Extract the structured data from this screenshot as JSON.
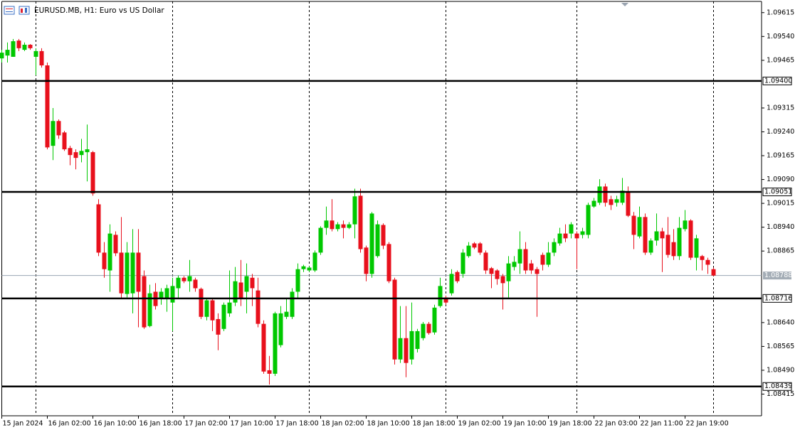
{
  "chart_data": {
    "type": "candlestick",
    "title": "EURUSD.MB, H1:  Euro vs US Dollar",
    "categories": [
      "15 Jan 2024",
      null,
      null,
      null,
      null,
      null,
      null,
      null,
      "16 Jan 02:00",
      null,
      null,
      null,
      null,
      null,
      null,
      null,
      "16 Jan 10:00",
      null,
      null,
      null,
      null,
      null,
      null,
      null,
      "16 Jan 18:00",
      null,
      null,
      null,
      null,
      null,
      null,
      null,
      "17 Jan 02:00",
      null,
      null,
      null,
      null,
      null,
      null,
      null,
      "17 Jan 10:00",
      null,
      null,
      null,
      null,
      null,
      null,
      null,
      "17 Jan 18:00",
      null,
      null,
      null,
      null,
      null,
      null,
      null,
      "18 Jan 02:00",
      null,
      null,
      null,
      null,
      null,
      null,
      null,
      "18 Jan 10:00",
      null,
      null,
      null,
      null,
      null,
      null,
      null,
      "18 Jan 18:00",
      null,
      null,
      null,
      null,
      null,
      null,
      null,
      "19 Jan 02:00",
      null,
      null,
      null,
      null,
      null,
      null,
      null,
      "19 Jan 10:00",
      null,
      null,
      null,
      null,
      null,
      null,
      null,
      "19 Jan 18:00",
      null,
      null,
      null,
      null,
      null,
      null,
      null,
      "22 Jan 03:00",
      null,
      null,
      null,
      null,
      null,
      null,
      null,
      "22 Jan 11:00",
      null,
      null,
      null,
      null,
      null,
      null,
      null,
      "22 Jan 19:00",
      null,
      null,
      null,
      null,
      null
    ],
    "open": [
      1.09471,
      1.0948,
      1.09476,
      1.09527,
      1.09498,
      1.09514,
      1.09476,
      1.09494,
      1.09449,
      1.09196,
      1.09274,
      1.09238,
      1.09189,
      1.09176,
      1.09167,
      1.09176,
      1.09176,
      1.09012,
      1.0886,
      1.08804,
      1.08916,
      1.0886,
      1.0873,
      1.08732,
      1.0886,
      1.08786,
      1.08629,
      1.08737,
      1.08714,
      1.08714,
      1.08703,
      1.08748,
      1.08781,
      1.0877,
      1.08775,
      1.08746,
      1.08658,
      1.0871,
      1.08651,
      1.0862,
      1.08669,
      1.08703,
      1.08766,
      1.08737,
      1.08781,
      1.08741,
      1.08636,
      1.0849,
      1.08479,
      1.08569,
      1.08658,
      1.08658,
      1.08737,
      1.08808,
      1.08804,
      1.08804,
      1.0886,
      1.08938,
      1.08961,
      1.08934,
      1.08949,
      1.08938,
      1.08949,
      1.09039,
      1.08876,
      1.08793,
      1.08849,
      1.08947,
      1.08887,
      1.08775,
      1.08524,
      1.08591,
      1.08524,
      1.08557,
      1.08591,
      1.08636,
      1.08609,
      1.08692,
      1.08719,
      1.08732,
      1.08799,
      1.08793,
      1.08849,
      1.08889,
      1.08889,
      1.0886,
      1.08811,
      1.08804,
      1.08786,
      1.0877,
      1.08815,
      1.08826,
      1.08871,
      1.08826,
      1.08808,
      1.08853,
      1.08822,
      1.0886,
      1.08889,
      1.0892,
      1.0892,
      1.0892,
      1.08916,
      1.08916,
      1.09005,
      1.09017,
      1.09068,
      1.09028,
      1.09017,
      1.09017,
      1.0905,
      1.08976,
      1.08911,
      1.08972,
      1.0886,
      1.08898,
      1.08927,
      1.08916,
      1.08893,
      1.08849,
      1.08934,
      1.08961,
      1.08844,
      1.08849,
      1.08837,
      1.08808
    ],
    "high": [
      1.09498,
      1.09521,
      1.09532,
      1.09532,
      1.09521,
      1.09516,
      1.09503,
      1.09503,
      1.09458,
      1.09315,
      1.09279,
      1.09243,
      1.09196,
      1.09185,
      1.09218,
      1.09263,
      1.0918,
      1.09028,
      1.08893,
      1.08949,
      1.08927,
      1.08972,
      1.08893,
      1.08934,
      1.08934,
      1.08804,
      1.08759,
      1.08764,
      1.08748,
      1.08759,
      1.08781,
      1.08788,
      1.08786,
      1.08837,
      1.08781,
      1.0875,
      1.08714,
      1.08714,
      1.08669,
      1.08703,
      1.08804,
      1.08815,
      1.08837,
      1.08826,
      1.08793,
      1.08781,
      1.08647,
      1.08535,
      1.08674,
      1.08692,
      1.08714,
      1.08748,
      1.08826,
      1.08822,
      1.08817,
      1.08867,
      1.08943,
      1.09005,
      1.09028,
      1.08956,
      1.08961,
      1.08956,
      1.09061,
      1.09061,
      1.08882,
      1.08988,
      1.08961,
      1.08952,
      1.08893,
      1.08781,
      1.08692,
      1.08692,
      1.08703,
      1.0862,
      1.08642,
      1.08642,
      1.08696,
      1.08781,
      1.08725,
      1.08808,
      1.08804,
      1.08871,
      1.08893,
      1.08893,
      1.08893,
      1.08867,
      1.08815,
      1.08808,
      1.08793,
      1.08849,
      1.08849,
      1.08927,
      1.08893,
      1.08837,
      1.08815,
      1.0886,
      1.08893,
      1.08905,
      1.08938,
      1.08949,
      1.08956,
      1.08927,
      1.08938,
      1.09017,
      1.09032,
      1.09091,
      1.09077,
      1.09039,
      1.09039,
      1.09095,
      1.09068,
      1.08988,
      1.09005,
      1.08983,
      1.08905,
      1.08983,
      1.08938,
      1.08972,
      1.08934,
      1.08972,
      1.08994,
      1.08965,
      1.08916,
      1.08853,
      1.08844,
      1.08813
    ],
    "low": [
      1.09458,
      1.09458,
      1.09476,
      1.09494,
      1.09494,
      1.09498,
      1.09418,
      1.09442,
      1.09185,
      1.09151,
      1.09218,
      1.0918,
      1.09135,
      1.09122,
      1.09144,
      1.09084,
      1.09039,
      1.08849,
      1.08781,
      1.08737,
      1.08849,
      1.08714,
      1.08719,
      1.08669,
      1.08625,
      1.0862,
      1.08625,
      1.08681,
      1.08696,
      1.08674,
      1.08613,
      1.08714,
      1.08764,
      1.08737,
      1.08737,
      1.08651,
      1.08647,
      1.08613,
      1.08553,
      1.08613,
      1.08658,
      1.08692,
      1.08692,
      1.08669,
      1.08692,
      1.08625,
      1.08479,
      1.08445,
      1.08472,
      1.08562,
      1.08651,
      1.08651,
      1.08714,
      1.08799,
      1.08799,
      1.08799,
      1.08853,
      1.08916,
      1.08927,
      1.08927,
      1.08905,
      1.08934,
      1.08905,
      1.0886,
      1.0877,
      1.08781,
      1.08844,
      1.08871,
      1.08764,
      1.08508,
      1.08513,
      1.08468,
      1.08508,
      1.08546,
      1.08584,
      1.08602,
      1.08602,
      1.08687,
      1.08696,
      1.08725,
      1.08764,
      1.08781,
      1.08844,
      1.08871,
      1.08853,
      1.08793,
      1.08748,
      1.08759,
      1.08681,
      1.08719,
      1.08804,
      1.08793,
      1.08793,
      1.08793,
      1.08658,
      1.08804,
      1.08815,
      1.08849,
      1.08882,
      1.08893,
      1.08905,
      1.08808,
      1.08905,
      1.08905,
      1.09001,
      1.0901,
      1.09005,
      1.08994,
      1.09005,
      1.0901,
      1.08972,
      1.08871,
      1.08905,
      1.08853,
      1.08853,
      1.08882,
      1.08799,
      1.08844,
      1.08837,
      1.08837,
      1.08927,
      1.08837,
      1.08804,
      1.08804,
      1.08793,
      1.08786
    ],
    "close": [
      1.09489,
      1.09498,
      1.09525,
      1.09503,
      1.09514,
      1.09503,
      1.09494,
      1.09449,
      1.09191,
      1.09274,
      1.09229,
      1.09185,
      1.09167,
      1.09158,
      1.0918,
      1.09185,
      1.09046,
      1.0886,
      1.08808,
      1.0892,
      1.08858,
      1.08732,
      1.0886,
      1.0886,
      1.08737,
      1.08625,
      1.08732,
      1.08692,
      1.08737,
      1.08748,
      1.08755,
      1.08781,
      1.0877,
      1.08786,
      1.08748,
      1.08658,
      1.0871,
      1.08647,
      1.08602,
      1.08696,
      1.08703,
      1.0877,
      1.08714,
      1.08786,
      1.08748,
      1.08636,
      1.08486,
      1.08479,
      1.08669,
      1.08669,
      1.08674,
      1.08737,
      1.08808,
      1.08817,
      1.08813,
      1.0886,
      1.08938,
      1.08961,
      1.08934,
      1.08949,
      1.08938,
      1.08949,
      1.09037,
      1.08871,
      1.08793,
      1.08983,
      1.08949,
      1.08882,
      1.0877,
      1.08524,
      1.08591,
      1.08513,
      1.08613,
      1.08613,
      1.08636,
      1.08607,
      1.08687,
      1.08755,
      1.08703,
      1.08793,
      1.0877,
      1.0886,
      1.08882,
      1.08876,
      1.0886,
      1.08804,
      1.08793,
      1.08777,
      1.08764,
      1.08826,
      1.08831,
      1.08871,
      1.08804,
      1.08804,
      1.08793,
      1.08822,
      1.0886,
      1.08893,
      1.0892,
      1.08905,
      1.08949,
      1.08905,
      1.08927,
      1.0901,
      1.09023,
      1.09068,
      1.09017,
      1.0901,
      1.09028,
      1.09055,
      1.08976,
      1.08916,
      1.08972,
      1.0886,
      1.08898,
      1.08927,
      1.08905,
      1.08853,
      1.08849,
      1.08938,
      1.08961,
      1.08844,
      1.08905,
      1.08837,
      1.08822,
      1.08788
    ],
    "up_color": "#00c800",
    "down_color": "#e8101c",
    "ylim": [
      1.08349,
      1.09648
    ],
    "yticks": [
      1.09615,
      {
        "value": 1.0954,
        "label": "1.09540"
      },
      1.09465,
      1.09315,
      {
        "value": 1.0924,
        "label": "1.09240"
      },
      1.09165,
      {
        "value": 1.0909,
        "label": "1.09090"
      },
      1.09015,
      {
        "value": 1.0894,
        "label": "1.08940"
      },
      1.08865,
      {
        "value": 1.0864,
        "label": "1.08640"
      },
      1.08565,
      {
        "value": 1.0849,
        "label": "1.08490"
      },
      1.08415
    ],
    "levels": [
      {
        "value": 1.094,
        "label": "1.09400"
      },
      1.09051,
      1.08716,
      1.08439
    ],
    "current_price": 1.08788,
    "period_separators": [
      6,
      30,
      54,
      78,
      101,
      125
    ]
  }
}
